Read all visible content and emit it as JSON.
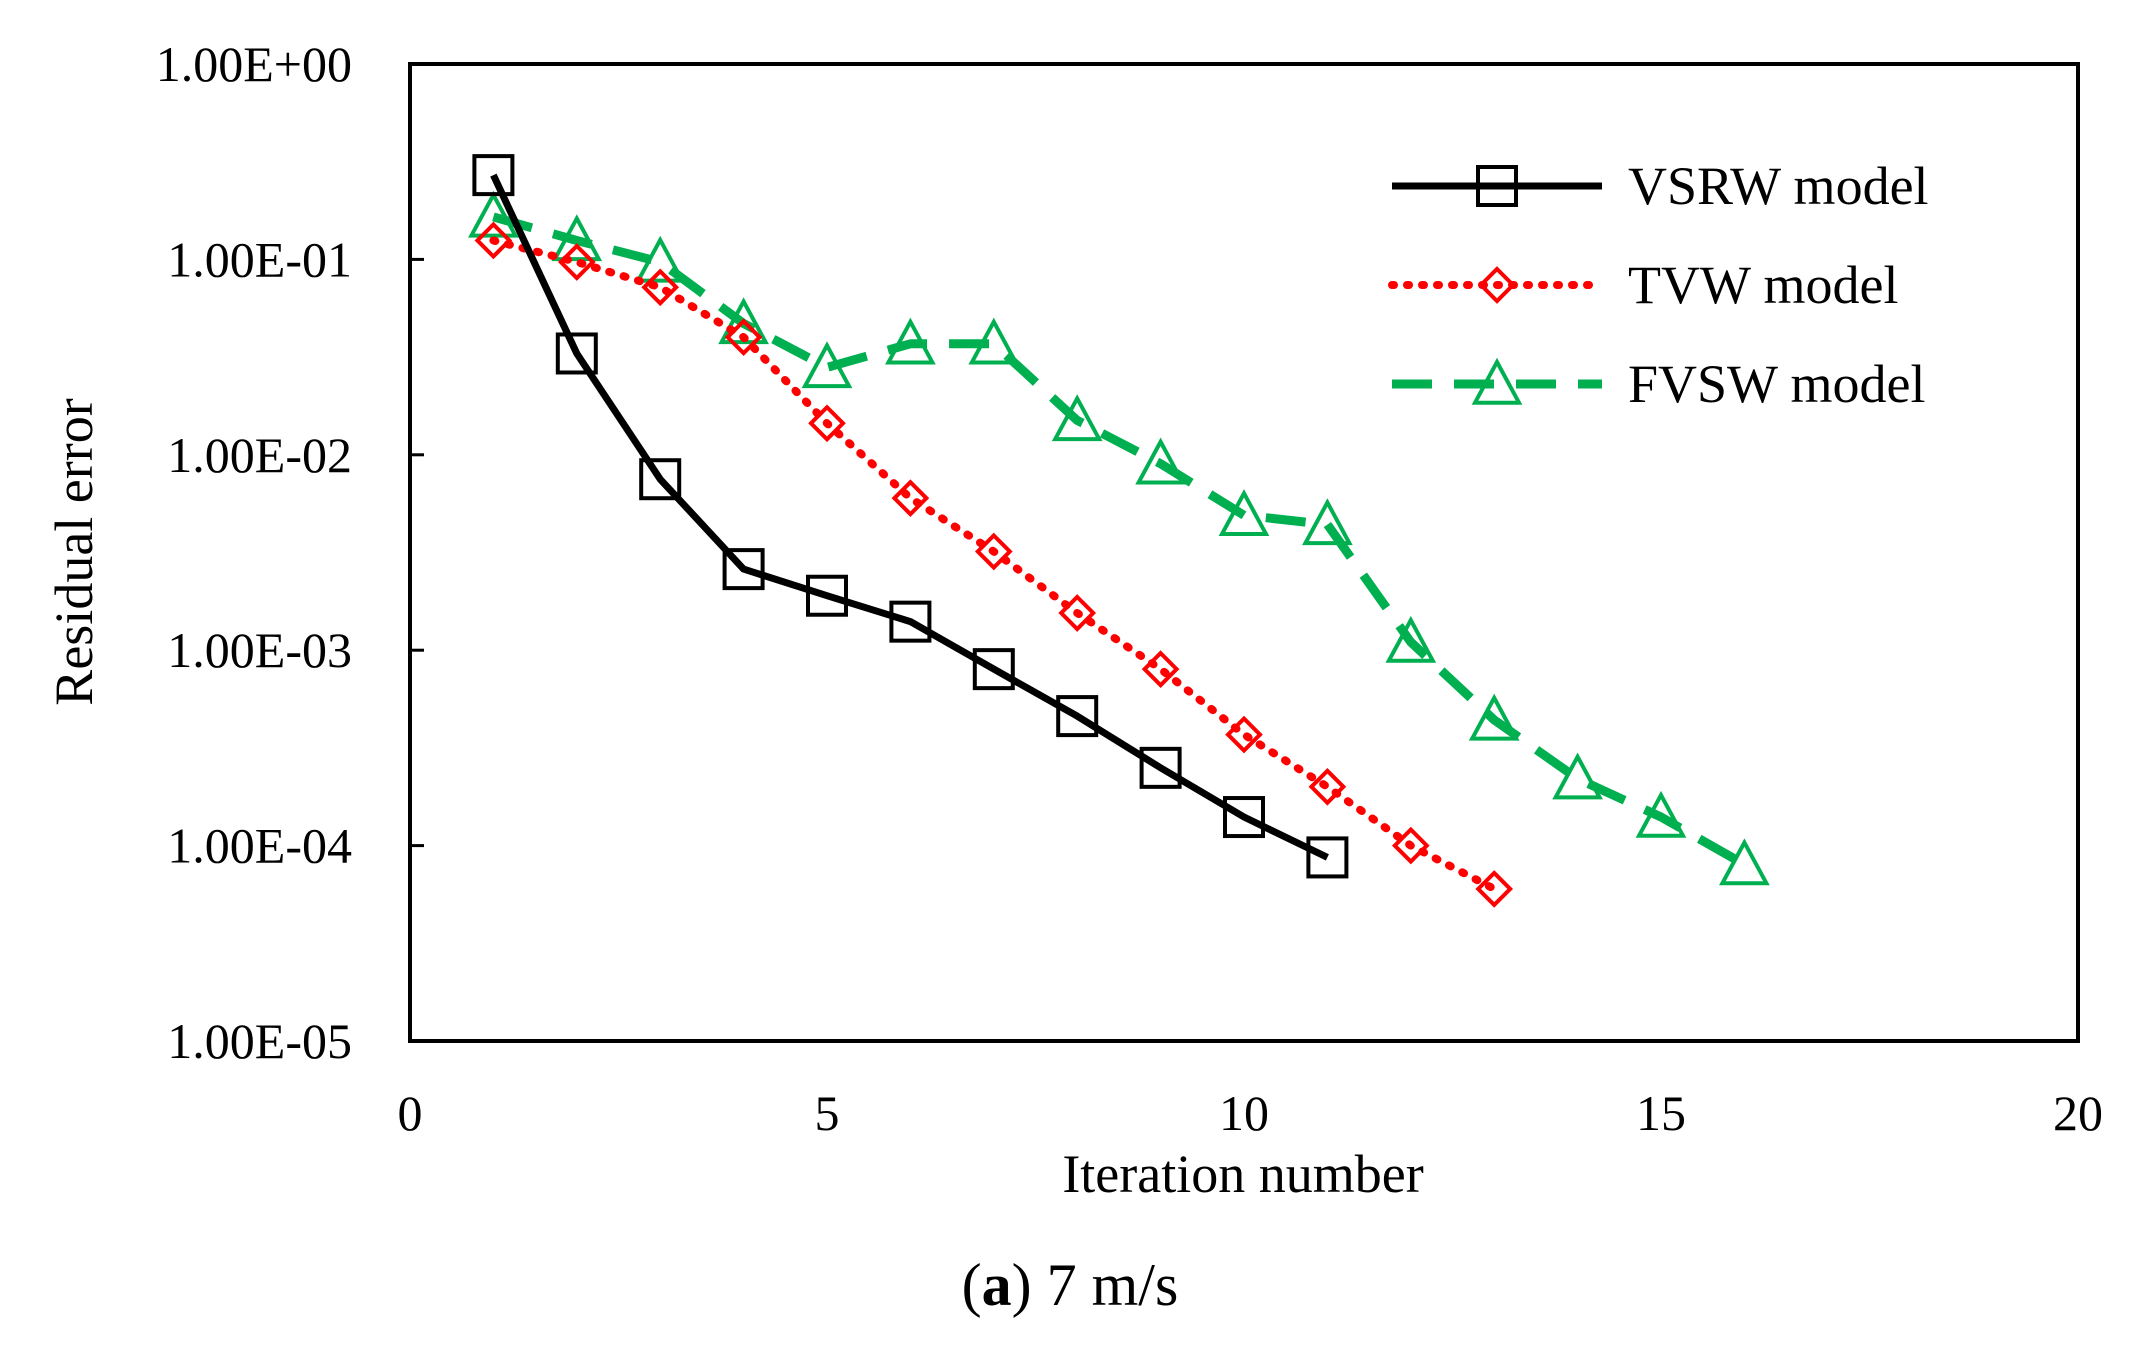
{
  "chart_data": {
    "type": "line",
    "title": "",
    "xlabel": "Iteration number",
    "ylabel": "Residual error",
    "xlim": [
      0,
      20
    ],
    "ylim": [
      1e-05,
      1
    ],
    "yscale": "log",
    "x_ticks": [
      0,
      5,
      10,
      15,
      20
    ],
    "x_tick_labels": [
      "0",
      "5",
      "10",
      "15",
      "20"
    ],
    "y_ticks": [
      1,
      0.1,
      0.01,
      0.001,
      0.0001,
      1e-05
    ],
    "y_tick_labels": [
      "1.00E+00",
      "1.00E-01",
      "1.00E-02",
      "1.00E-03",
      "1.00E-04",
      "1.00E-05"
    ],
    "grid": false,
    "legend_position": "top-right",
    "series": [
      {
        "name": "VSRW model",
        "color": "#000000",
        "line_style": "solid",
        "marker": "square",
        "x": [
          1,
          2,
          3,
          4,
          5,
          6,
          7,
          8,
          9,
          10,
          11
        ],
        "values": [
          0.27,
          0.033,
          0.0075,
          0.0026,
          0.0019,
          0.0014,
          0.0008,
          0.00046,
          0.00025,
          0.00014,
          8.7e-05
        ]
      },
      {
        "name": "TVW model",
        "color": "#ff0000",
        "line_style": "dotted",
        "marker": "diamond",
        "x": [
          1,
          2,
          3,
          4,
          5,
          6,
          7,
          8,
          9,
          10,
          11,
          12,
          13
        ],
        "values": [
          0.125,
          0.097,
          0.072,
          0.04,
          0.0145,
          0.006,
          0.0032,
          0.00155,
          0.0008,
          0.00037,
          0.0002,
          0.0001,
          6e-05
        ]
      },
      {
        "name": "FVSW model",
        "color": "#00b050",
        "line_style": "dashed",
        "marker": "triangle",
        "x": [
          1,
          2,
          3,
          4,
          5,
          6,
          7,
          8,
          9,
          10,
          11,
          12,
          13,
          14,
          15,
          16
        ],
        "values": [
          0.165,
          0.125,
          0.097,
          0.047,
          0.028,
          0.037,
          0.037,
          0.015,
          0.009,
          0.0049,
          0.0044,
          0.0011,
          0.00044,
          0.00022,
          0.00014,
          8e-05
        ]
      }
    ]
  },
  "caption": {
    "letter": "a",
    "text": "7 m/s"
  }
}
